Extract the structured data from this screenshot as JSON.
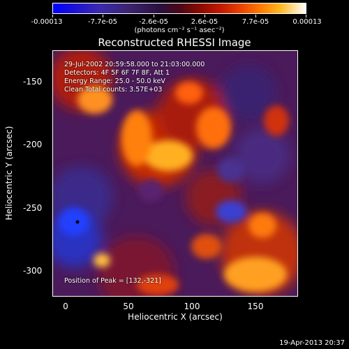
{
  "colorbar": {
    "tick_labels": [
      "-0.00013",
      "-7.7e-05",
      "-2.6e-05",
      "2.6e-05",
      "7.7e-05",
      "0.00013"
    ],
    "units": "(photons cm⁻² s⁻¹ asec⁻²)"
  },
  "title": "Reconstructed RHESSI Image",
  "annotations": {
    "time_range": "29-Jul-2002 20:59:58.000 to 21:03:00.000",
    "detectors": "Detectors: 4F 5F 6F 7F 8F, Att 1",
    "energy": "Energy Range: 25.0 - 50.0 keV",
    "clean": "Clean    Total counts: 3.57E+03",
    "peak": "Position of Peak = [132,-321]"
  },
  "axes": {
    "xlabel": "Heliocentric X (arcsec)",
    "ylabel": "Heliocentric Y (arcsec)",
    "x_ticks": [
      "0",
      "50",
      "100",
      "150"
    ],
    "y_ticks": [
      "-150",
      "-200",
      "-250",
      "-300"
    ]
  },
  "timestamp": "19-Apr-2013 20:37"
}
